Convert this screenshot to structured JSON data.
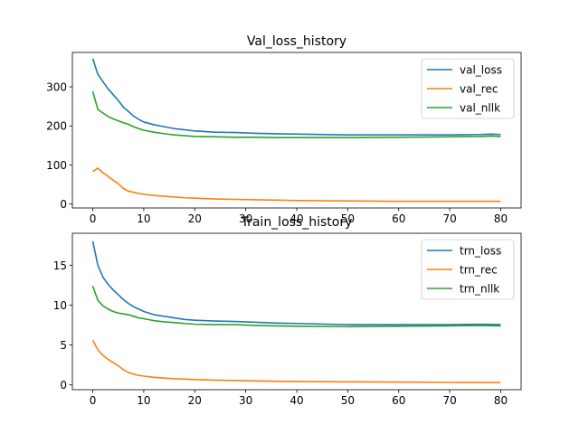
{
  "chart_data": [
    {
      "type": "line",
      "title": "Val_loss_history",
      "xlabel": "",
      "ylabel": "",
      "xlim": [
        -4,
        84
      ],
      "ylim": [
        -10,
        388
      ],
      "x_ticks": [
        0,
        10,
        20,
        30,
        40,
        50,
        60,
        70,
        80
      ],
      "y_ticks": [
        0,
        100,
        200,
        300
      ],
      "legend_position": "upper right",
      "grid": false,
      "series": [
        {
          "name": "val_loss",
          "color": "#1f77b4",
          "points": [
            [
              0,
              372
            ],
            [
              1,
              332
            ],
            [
              2,
              313
            ],
            [
              3,
              295
            ],
            [
              4,
              280
            ],
            [
              5,
              265
            ],
            [
              6,
              248
            ],
            [
              7,
              237
            ],
            [
              8,
              225
            ],
            [
              9,
              217
            ],
            [
              10,
              210
            ],
            [
              12,
              203
            ],
            [
              14,
              198
            ],
            [
              16,
              193
            ],
            [
              18,
              190
            ],
            [
              20,
              187
            ],
            [
              24,
              184
            ],
            [
              28,
              183
            ],
            [
              32,
              181
            ],
            [
              36,
              180
            ],
            [
              40,
              179
            ],
            [
              50,
              177
            ],
            [
              60,
              177
            ],
            [
              70,
              177
            ],
            [
              76,
              178
            ],
            [
              78,
              179
            ],
            [
              80,
              178
            ]
          ]
        },
        {
          "name": "val_rec",
          "color": "#ff7f0e",
          "points": [
            [
              0,
              83
            ],
            [
              1,
              92
            ],
            [
              2,
              80
            ],
            [
              3,
              71
            ],
            [
              4,
              61
            ],
            [
              5,
              52
            ],
            [
              6,
              40
            ],
            [
              7,
              33
            ],
            [
              8,
              30
            ],
            [
              9,
              27
            ],
            [
              10,
              25
            ],
            [
              12,
              22
            ],
            [
              14,
              20
            ],
            [
              16,
              18
            ],
            [
              18,
              16
            ],
            [
              20,
              15
            ],
            [
              24,
              13
            ],
            [
              28,
              12
            ],
            [
              32,
              11
            ],
            [
              36,
              10
            ],
            [
              40,
              9
            ],
            [
              50,
              8
            ],
            [
              60,
              7
            ],
            [
              70,
              7
            ],
            [
              80,
              7
            ]
          ]
        },
        {
          "name": "val_nllk",
          "color": "#2ca02c",
          "points": [
            [
              0,
              288
            ],
            [
              1,
              242
            ],
            [
              2,
              233
            ],
            [
              3,
              224
            ],
            [
              4,
              218
            ],
            [
              5,
              213
            ],
            [
              6,
              208
            ],
            [
              7,
              204
            ],
            [
              8,
              198
            ],
            [
              9,
              193
            ],
            [
              10,
              189
            ],
            [
              12,
              184
            ],
            [
              14,
              180
            ],
            [
              16,
              177
            ],
            [
              18,
              175
            ],
            [
              20,
              173
            ],
            [
              24,
              172
            ],
            [
              28,
              171
            ],
            [
              32,
              171
            ],
            [
              36,
              170
            ],
            [
              40,
              170
            ],
            [
              50,
              170
            ],
            [
              60,
              171
            ],
            [
              70,
              172
            ],
            [
              76,
              173
            ],
            [
              78,
              174
            ],
            [
              80,
              173
            ]
          ]
        }
      ]
    },
    {
      "type": "line",
      "title": "Train_loss_history",
      "xlabel": "",
      "ylabel": "",
      "xlim": [
        -4,
        84
      ],
      "ylim": [
        -0.6,
        19
      ],
      "x_ticks": [
        0,
        10,
        20,
        30,
        40,
        50,
        60,
        70,
        80
      ],
      "y_ticks": [
        0,
        5,
        10,
        15
      ],
      "legend_position": "upper right",
      "grid": false,
      "series": [
        {
          "name": "trn_loss",
          "color": "#1f77b4",
          "points": [
            [
              0,
              18.0
            ],
            [
              1,
              15.0
            ],
            [
              2,
              13.5
            ],
            [
              3,
              12.6
            ],
            [
              4,
              11.9
            ],
            [
              5,
              11.3
            ],
            [
              6,
              10.7
            ],
            [
              7,
              10.2
            ],
            [
              8,
              9.8
            ],
            [
              9,
              9.5
            ],
            [
              10,
              9.2
            ],
            [
              12,
              8.8
            ],
            [
              14,
              8.6
            ],
            [
              16,
              8.4
            ],
            [
              18,
              8.2
            ],
            [
              20,
              8.1
            ],
            [
              24,
              8.0
            ],
            [
              28,
              7.95
            ],
            [
              32,
              7.85
            ],
            [
              36,
              7.75
            ],
            [
              40,
              7.7
            ],
            [
              50,
              7.55
            ],
            [
              60,
              7.55
            ],
            [
              70,
              7.55
            ],
            [
              76,
              7.6
            ],
            [
              80,
              7.55
            ]
          ]
        },
        {
          "name": "trn_rec",
          "color": "#ff7f0e",
          "points": [
            [
              0,
              5.6
            ],
            [
              1,
              4.4
            ],
            [
              2,
              3.7
            ],
            [
              3,
              3.2
            ],
            [
              4,
              2.8
            ],
            [
              5,
              2.4
            ],
            [
              6,
              1.9
            ],
            [
              7,
              1.55
            ],
            [
              8,
              1.35
            ],
            [
              9,
              1.2
            ],
            [
              10,
              1.1
            ],
            [
              12,
              0.95
            ],
            [
              14,
              0.85
            ],
            [
              16,
              0.78
            ],
            [
              18,
              0.72
            ],
            [
              20,
              0.67
            ],
            [
              24,
              0.6
            ],
            [
              28,
              0.55
            ],
            [
              32,
              0.5
            ],
            [
              36,
              0.46
            ],
            [
              40,
              0.43
            ],
            [
              50,
              0.38
            ],
            [
              60,
              0.35
            ],
            [
              70,
              0.32
            ],
            [
              80,
              0.3
            ]
          ]
        },
        {
          "name": "trn_nllk",
          "color": "#2ca02c",
          "points": [
            [
              0,
              12.4
            ],
            [
              1,
              10.6
            ],
            [
              2,
              9.9
            ],
            [
              3,
              9.5
            ],
            [
              4,
              9.2
            ],
            [
              5,
              9.0
            ],
            [
              6,
              8.9
            ],
            [
              7,
              8.8
            ],
            [
              8,
              8.6
            ],
            [
              9,
              8.4
            ],
            [
              10,
              8.3
            ],
            [
              12,
              8.05
            ],
            [
              14,
              7.9
            ],
            [
              16,
              7.8
            ],
            [
              18,
              7.7
            ],
            [
              20,
              7.6
            ],
            [
              24,
              7.55
            ],
            [
              28,
              7.55
            ],
            [
              32,
              7.45
            ],
            [
              36,
              7.4
            ],
            [
              40,
              7.35
            ],
            [
              50,
              7.3
            ],
            [
              60,
              7.35
            ],
            [
              70,
              7.4
            ],
            [
              76,
              7.45
            ],
            [
              80,
              7.4
            ]
          ]
        }
      ]
    }
  ]
}
